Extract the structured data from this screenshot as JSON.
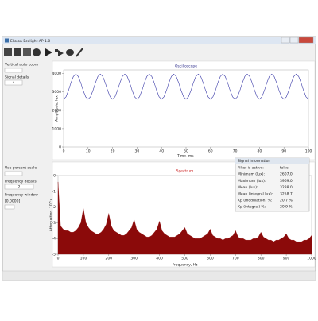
{
  "window": {
    "title": "Ekolon Ecolight AP 1.0"
  },
  "left_panel": {
    "vertical_auto_zoom": "Vertical auto zoom",
    "signal_details": "Signal details",
    "signal_details_value": "4",
    "use_percent_scale": "Use percent scale",
    "frequency_details": "Frequency details",
    "frequency_details_value": "2",
    "frequency_window": "Frequency window",
    "frequency_window_value": "[0.0000]"
  },
  "signal_info": {
    "title": "Signal information",
    "rows": [
      [
        "Filter is active:",
        "false"
      ],
      [
        "Minimum (lux):",
        "2607.0"
      ],
      [
        "Maximum (lux):",
        "3969.0"
      ],
      [
        "Mean (lux):",
        "3288.0"
      ],
      [
        "Mean (integral lux):",
        "3258.7"
      ],
      [
        "Kp (modulation) %:",
        "20.7 %"
      ],
      [
        "Kp (integral) %:",
        "20.9 %"
      ]
    ]
  },
  "chart_data": [
    {
      "type": "line",
      "title": "Oscilloscope",
      "x_label": "Time, ms.",
      "y_label": "Amplitude, lux",
      "color": "#3a3aa8",
      "title_color": "#2a2a8a",
      "xlim": [
        0,
        100
      ],
      "xticks": [
        0,
        10,
        20,
        30,
        40,
        50,
        60,
        70,
        80,
        90,
        100
      ],
      "ylim": [
        0,
        4200
      ],
      "yticks": [
        0,
        1000,
        2000,
        3000,
        4000
      ],
      "x": [
        0,
        1,
        2,
        3,
        4,
        5,
        6,
        7,
        8,
        9,
        10,
        11,
        12,
        13,
        14,
        15,
        16,
        17,
        18,
        19,
        20,
        21,
        22,
        23,
        24,
        25,
        26,
        27,
        28,
        29,
        30,
        31,
        32,
        33,
        34,
        35,
        36,
        37,
        38,
        39,
        40,
        41,
        42,
        43,
        44,
        45,
        46,
        47,
        48,
        49,
        50,
        51,
        52,
        53,
        54,
        55,
        56,
        57,
        58,
        59,
        60,
        61,
        62,
        63,
        64,
        65,
        66,
        67,
        68,
        69,
        70,
        71,
        72,
        73,
        74,
        75,
        76,
        77,
        78,
        79,
        80,
        81,
        82,
        83,
        84,
        85,
        86,
        87,
        88,
        89,
        90,
        91,
        92,
        93,
        94,
        95,
        96,
        97,
        98,
        99,
        100
      ],
      "values": [
        2607,
        2737,
        3078,
        3498,
        3839,
        3969,
        3839,
        3498,
        3078,
        2737,
        2607,
        2737,
        3078,
        3498,
        3839,
        3969,
        3839,
        3498,
        3078,
        2737,
        2607,
        2737,
        3078,
        3498,
        3839,
        3969,
        3839,
        3498,
        3078,
        2737,
        2607,
        2737,
        3078,
        3498,
        3839,
        3969,
        3839,
        3498,
        3078,
        2737,
        2607,
        2737,
        3078,
        3498,
        3839,
        3969,
        3839,
        3498,
        3078,
        2737,
        2607,
        2737,
        3078,
        3498,
        3839,
        3969,
        3839,
        3498,
        3078,
        2737,
        2607,
        2737,
        3078,
        3498,
        3839,
        3969,
        3839,
        3498,
        3078,
        2737,
        2607,
        2737,
        3078,
        3498,
        3839,
        3969,
        3839,
        3498,
        3078,
        2737,
        2607,
        2737,
        3078,
        3498,
        3839,
        3969,
        3839,
        3498,
        3078,
        2737,
        2607,
        2737,
        3078,
        3498,
        3839,
        3969,
        3839,
        3498,
        3078,
        2737,
        2607
      ]
    },
    {
      "type": "area",
      "title": "Spectrum",
      "x_label": "Frequency, Hz",
      "y_label": "Attenuation, 10^x",
      "color": "#8b0a0a",
      "title_color": "#cc2222",
      "xlim": [
        0,
        1000
      ],
      "xticks": [
        0,
        100,
        200,
        300,
        400,
        500,
        600,
        700,
        800,
        900,
        1000
      ],
      "ylim": [
        -5,
        0
      ],
      "yticks": [
        -5,
        -4,
        -3,
        -2,
        -1,
        0
      ],
      "x": [
        0,
        10,
        20,
        30,
        40,
        50,
        60,
        70,
        80,
        90,
        100,
        110,
        120,
        130,
        140,
        150,
        160,
        170,
        180,
        190,
        200,
        210,
        220,
        230,
        240,
        250,
        260,
        270,
        280,
        290,
        300,
        310,
        320,
        330,
        340,
        350,
        360,
        370,
        380,
        390,
        400,
        410,
        420,
        430,
        440,
        450,
        460,
        470,
        480,
        490,
        500,
        510,
        520,
        530,
        540,
        550,
        560,
        570,
        580,
        590,
        600,
        610,
        620,
        630,
        640,
        650,
        660,
        670,
        680,
        690,
        700,
        710,
        720,
        730,
        740,
        750,
        760,
        770,
        780,
        790,
        800,
        810,
        820,
        830,
        840,
        850,
        860,
        870,
        880,
        890,
        900,
        910,
        920,
        930,
        940,
        950,
        960,
        970,
        980,
        990,
        1000
      ],
      "values": [
        -0.4,
        -3.2,
        -3.4,
        -3.5,
        -3.5,
        -3.6,
        -3.6,
        -3.5,
        -3.3,
        -3.0,
        -2.1,
        -3.0,
        -3.3,
        -3.5,
        -3.6,
        -3.7,
        -3.7,
        -3.6,
        -3.4,
        -3.1,
        -2.4,
        -3.2,
        -3.5,
        -3.6,
        -3.7,
        -3.8,
        -3.8,
        -3.7,
        -3.5,
        -3.3,
        -2.8,
        -3.4,
        -3.6,
        -3.7,
        -3.8,
        -3.9,
        -3.9,
        -3.8,
        -3.6,
        -3.4,
        -2.9,
        -3.5,
        -3.7,
        -3.8,
        -3.9,
        -3.9,
        -3.9,
        -3.8,
        -3.7,
        -3.5,
        -3.3,
        -3.7,
        -3.8,
        -3.9,
        -4.0,
        -4.0,
        -4.0,
        -3.9,
        -3.8,
        -3.7,
        -3.4,
        -3.8,
        -3.9,
        -4.0,
        -4.0,
        -4.1,
        -4.0,
        -4.0,
        -3.9,
        -3.8,
        -3.5,
        -3.9,
        -4.0,
        -4.0,
        -4.1,
        -4.1,
        -4.1,
        -4.0,
        -4.0,
        -3.9,
        -3.6,
        -3.9,
        -4.0,
        -4.1,
        -4.1,
        -4.2,
        -4.1,
        -4.1,
        -4.0,
        -3.9,
        -3.7,
        -4.0,
        -4.1,
        -4.1,
        -4.2,
        -4.2,
        -4.2,
        -4.1,
        -4.1,
        -4.0,
        -3.8
      ]
    }
  ]
}
